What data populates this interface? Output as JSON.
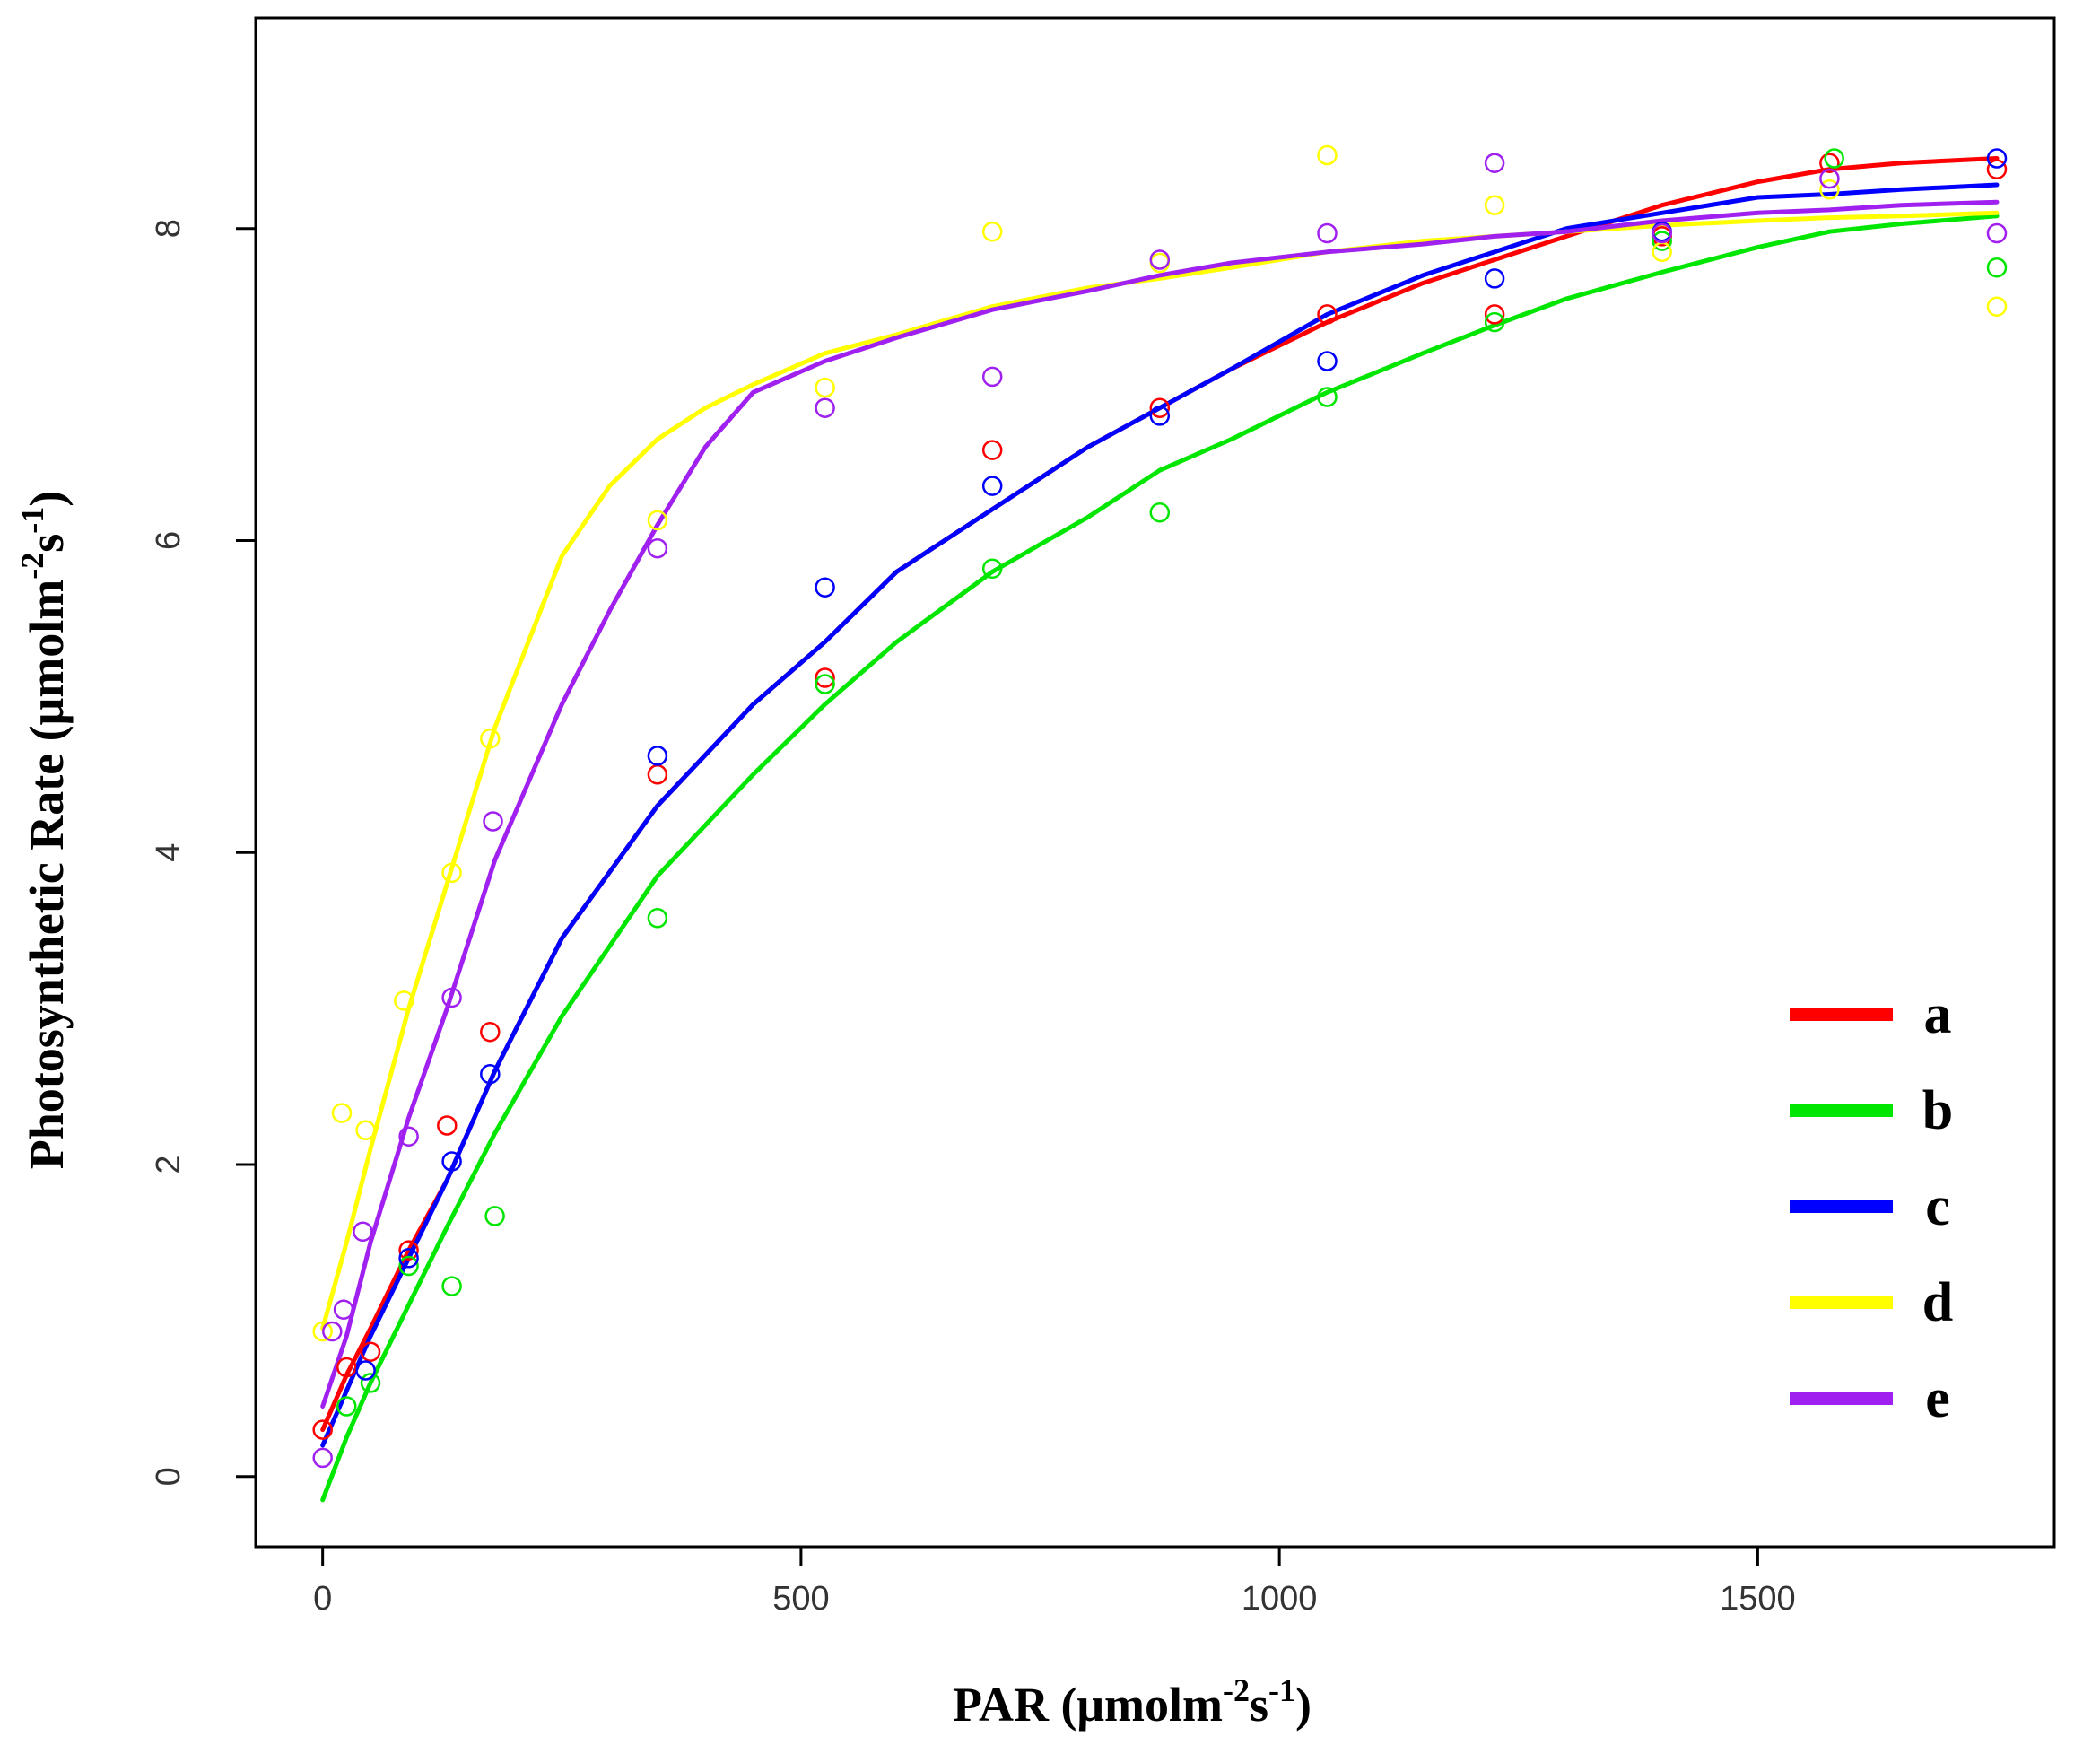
{
  "chart_data": {
    "type": "line",
    "title": "",
    "xlabel": {
      "main": "PAR (μmolm",
      "sup1": "-2",
      "mid": "s",
      "sup2": "-1",
      "end": ")"
    },
    "ylabel": {
      "main": "Photosynthetic Rate (μmolm",
      "sup1": "-2",
      "mid": "s",
      "sup2": "-1",
      "end": ")"
    },
    "xlim": [
      -70,
      1810
    ],
    "ylim": [
      -0.45,
      9.35
    ],
    "xticks": [
      0,
      500,
      1000,
      1500
    ],
    "yticks": [
      0,
      2,
      4,
      6,
      8
    ],
    "xtick_labels": [
      "0",
      "500",
      "1000",
      "1500"
    ],
    "ytick_labels": [
      "0",
      "2",
      "4",
      "6",
      "8"
    ],
    "legend_position": "bottom-right",
    "series": [
      {
        "name": "a",
        "color": "#ff0000",
        "curve_x": [
          0,
          25,
          50,
          90,
          130,
          180,
          250,
          350,
          450,
          525,
          600,
          700,
          800,
          875,
          950,
          1050,
          1150,
          1225,
          1300,
          1400,
          1500,
          1575,
          1650,
          1750
        ],
        "curve_y": [
          0.3,
          0.65,
          0.95,
          1.45,
          1.9,
          2.6,
          3.45,
          4.3,
          4.95,
          5.35,
          5.8,
          6.2,
          6.6,
          6.85,
          7.1,
          7.4,
          7.65,
          7.8,
          7.95,
          8.15,
          8.3,
          8.38,
          8.42,
          8.45
        ],
        "points_x": [
          0,
          25,
          50,
          90,
          130,
          175,
          350,
          525,
          700,
          875,
          1050,
          1225,
          1400,
          1575,
          1750
        ],
        "points_y": [
          0.3,
          0.7,
          0.8,
          1.45,
          2.25,
          2.85,
          4.5,
          5.12,
          6.58,
          6.85,
          7.45,
          7.45,
          7.95,
          8.42,
          8.38
        ]
      },
      {
        "name": "b",
        "color": "#00e600",
        "curve_x": [
          0,
          25,
          50,
          90,
          130,
          180,
          250,
          350,
          450,
          525,
          600,
          700,
          800,
          875,
          950,
          1050,
          1150,
          1225,
          1300,
          1400,
          1500,
          1575,
          1650,
          1750
        ],
        "curve_y": [
          -0.15,
          0.25,
          0.6,
          1.1,
          1.6,
          2.2,
          2.95,
          3.85,
          4.5,
          4.95,
          5.35,
          5.8,
          6.15,
          6.45,
          6.65,
          6.95,
          7.2,
          7.38,
          7.55,
          7.72,
          7.88,
          7.98,
          8.03,
          8.08
        ],
        "points_x": [
          25,
          50,
          90,
          135,
          180,
          350,
          525,
          700,
          875,
          1050,
          1225,
          1400,
          1580,
          1750
        ],
        "points_y": [
          0.45,
          0.6,
          1.35,
          1.22,
          1.67,
          3.58,
          5.08,
          5.82,
          6.18,
          6.92,
          7.4,
          7.92,
          8.45,
          7.75
        ]
      },
      {
        "name": "c",
        "color": "#0000ff",
        "curve_x": [
          0,
          25,
          50,
          90,
          130,
          180,
          250,
          350,
          450,
          525,
          600,
          700,
          800,
          875,
          950,
          1050,
          1150,
          1225,
          1300,
          1400,
          1500,
          1575,
          1650,
          1750
        ],
        "curve_y": [
          0.2,
          0.55,
          0.9,
          1.4,
          1.9,
          2.6,
          3.45,
          4.3,
          4.95,
          5.35,
          5.8,
          6.2,
          6.6,
          6.85,
          7.1,
          7.45,
          7.7,
          7.85,
          8.0,
          8.1,
          8.2,
          8.22,
          8.25,
          8.28
        ],
        "points_x": [
          45,
          90,
          135,
          175,
          350,
          525,
          700,
          875,
          1050,
          1225,
          1400,
          1750
        ],
        "points_y": [
          0.68,
          1.4,
          2.02,
          2.58,
          4.62,
          5.7,
          6.35,
          6.8,
          7.15,
          7.68,
          7.98,
          8.45
        ]
      },
      {
        "name": "d",
        "color": "#ffff00",
        "curve_x": [
          0,
          25,
          50,
          90,
          130,
          180,
          250,
          300,
          350,
          400,
          450,
          525,
          600,
          700,
          800,
          875,
          950,
          1050,
          1150,
          1225,
          1300,
          1400,
          1500,
          1575,
          1650,
          1750
        ],
        "curve_y": [
          0.95,
          1.5,
          2.1,
          3.0,
          3.8,
          4.8,
          5.9,
          6.35,
          6.65,
          6.85,
          7.0,
          7.2,
          7.32,
          7.5,
          7.62,
          7.68,
          7.75,
          7.85,
          7.92,
          7.95,
          7.98,
          8.02,
          8.05,
          8.07,
          8.08,
          8.1
        ],
        "points_x": [
          0,
          20,
          45,
          85,
          135,
          175,
          350,
          525,
          700,
          875,
          1050,
          1225,
          1400,
          1575,
          1750
        ],
        "points_y": [
          0.93,
          2.33,
          2.22,
          3.05,
          3.87,
          4.73,
          6.13,
          6.98,
          7.98,
          7.78,
          8.47,
          8.15,
          7.85,
          8.25,
          7.5
        ]
      },
      {
        "name": "e",
        "color": "#a020f0",
        "curve_x": [
          0,
          25,
          50,
          90,
          130,
          180,
          250,
          300,
          350,
          400,
          450,
          525,
          600,
          700,
          800,
          875,
          950,
          1050,
          1150,
          1225,
          1300,
          1400,
          1500,
          1575,
          1650,
          1750
        ],
        "curve_y": [
          0.45,
          0.9,
          1.5,
          2.3,
          3.0,
          3.95,
          4.95,
          5.55,
          6.1,
          6.6,
          6.95,
          7.15,
          7.3,
          7.48,
          7.6,
          7.7,
          7.78,
          7.85,
          7.9,
          7.95,
          7.98,
          8.05,
          8.1,
          8.12,
          8.15,
          8.17
        ],
        "points_x": [
          0,
          10,
          22,
          42,
          90,
          135,
          178,
          350,
          525,
          700,
          875,
          1050,
          1225,
          1400,
          1575,
          1750
        ],
        "points_y": [
          0.12,
          0.93,
          1.07,
          1.57,
          2.18,
          3.07,
          4.2,
          5.95,
          6.85,
          7.05,
          7.8,
          7.97,
          8.42,
          7.97,
          8.32,
          7.97
        ]
      }
    ]
  }
}
